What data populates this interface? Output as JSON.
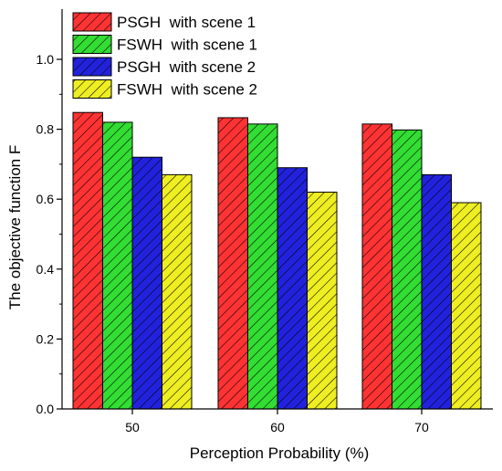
{
  "chart_data": {
    "type": "bar",
    "title": "",
    "xlabel": "Perception Probability (%)",
    "ylabel": "The objective function F",
    "categories": [
      "50",
      "60",
      "70"
    ],
    "ylim": [
      0.0,
      1.0
    ],
    "yticks": [
      "0.0",
      "0.2",
      "0.4",
      "0.6",
      "0.8",
      "1.0"
    ],
    "grid": false,
    "legend_position": "top-left",
    "series": [
      {
        "name": "PSGH  with scene 1",
        "values": [
          0.848,
          0.833,
          0.815
        ],
        "color": "#ff3333",
        "pattern": "diagonal-hatch"
      },
      {
        "name": "FSWH  with scene 1",
        "values": [
          0.82,
          0.815,
          0.798
        ],
        "color": "#33dd33",
        "pattern": "diagonal-hatch"
      },
      {
        "name": "PSGH  with scene 2",
        "values": [
          0.72,
          0.69,
          0.67
        ],
        "color": "#2222dd",
        "pattern": "diagonal-hatch"
      },
      {
        "name": "FSWH  with scene 2",
        "values": [
          0.67,
          0.62,
          0.59
        ],
        "color": "#eeee22",
        "pattern": "diagonal-hatch"
      }
    ]
  }
}
